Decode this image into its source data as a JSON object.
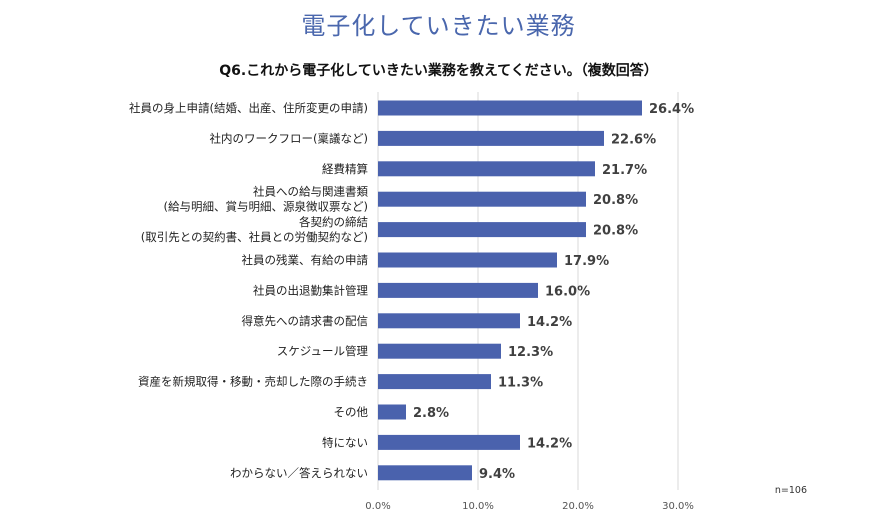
{
  "title": "電子化していきたい業務",
  "question": "Q6.これから電子化していきたい業務を教えてください。（複数回答）",
  "sample_note": "n=106",
  "colors": {
    "bar": "#4a62ad",
    "title": "#4a67ad",
    "grid": "#d9d9d9"
  },
  "chart_data": {
    "type": "bar",
    "orientation": "horizontal",
    "categories": [
      [
        "社員の身上申請(結婚、出産、住所変更の申請)"
      ],
      [
        "社内のワークフロー(稟議など)"
      ],
      [
        "経費精算"
      ],
      [
        "社員への給与関連書類",
        "(給与明細、賞与明細、源泉徴収票など)"
      ],
      [
        "各契約の締結",
        "(取引先との契約書、社員との労働契約など)"
      ],
      [
        "社員の残業、有給の申請"
      ],
      [
        "社員の出退勤集計管理"
      ],
      [
        "得意先への請求書の配信"
      ],
      [
        "スケジュール管理"
      ],
      [
        "資産を新規取得・移動・売却した際の手続き"
      ],
      [
        "その他"
      ],
      [
        "特にない"
      ],
      [
        "わからない／答えられない"
      ]
    ],
    "values": [
      26.4,
      22.6,
      21.7,
      20.8,
      20.8,
      17.9,
      16.0,
      14.2,
      12.3,
      11.3,
      2.8,
      14.2,
      9.4
    ],
    "value_labels": [
      "26.4%",
      "22.6%",
      "21.7%",
      "20.8%",
      "20.8%",
      "17.9%",
      "16.0%",
      "14.2%",
      "12.3%",
      "11.3%",
      "2.8%",
      "14.2%",
      "9.4%"
    ],
    "xlim": [
      0,
      30
    ],
    "xticks": [
      0,
      10,
      20,
      30
    ],
    "xtick_labels": [
      "0.0%",
      "10.0%",
      "20.0%",
      "30.0%"
    ],
    "grid": true
  }
}
